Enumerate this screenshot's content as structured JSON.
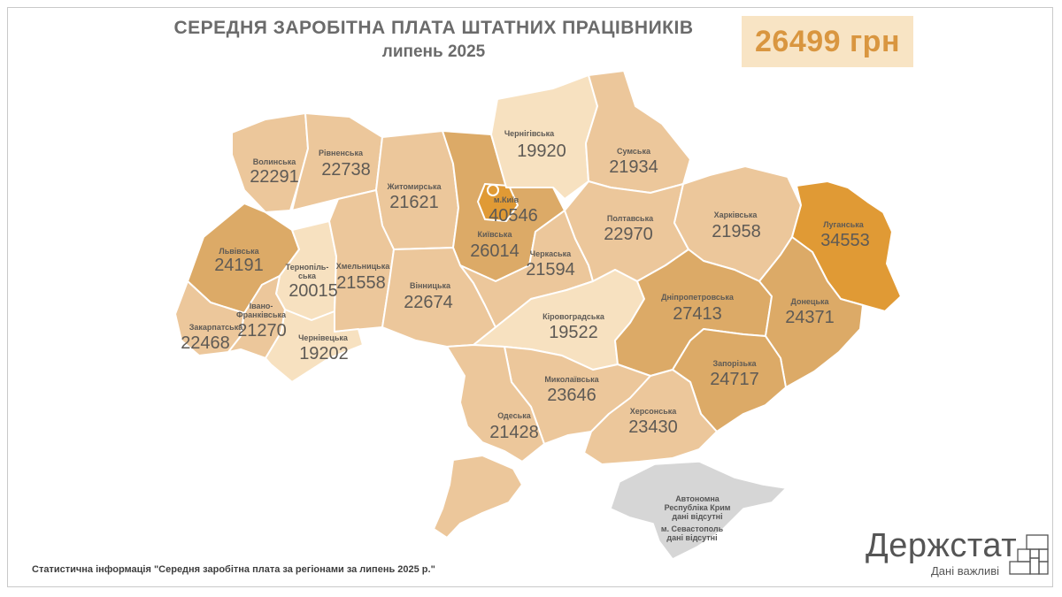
{
  "header": {
    "title": "СЕРЕДНЯ ЗАРОБІТНА ПЛАТА ШТАТНИХ ПРАЦІВНИКІВ",
    "subtitle": "липень 2025",
    "national_average": "26499 грн"
  },
  "colors": {
    "lightest": "#f7e1c0",
    "light": "#ecc79b",
    "medium": "#dcaa67",
    "dark": "#e09a35",
    "no_data": "#d6d6d6",
    "badge_bg": "#f8e4c4",
    "badge_text": "#d99640"
  },
  "regions": [
    {
      "name": "Волинська",
      "value": "22291",
      "shade": "light"
    },
    {
      "name": "Рівненська",
      "value": "22738",
      "shade": "light"
    },
    {
      "name": "Житомирська",
      "value": "21621",
      "shade": "light"
    },
    {
      "name": "м.Київ",
      "value": "40546",
      "shade": "dark"
    },
    {
      "name": "Київська",
      "value": "26014",
      "shade": "medium"
    },
    {
      "name": "Чернігівська",
      "value": "19920",
      "shade": "lightest"
    },
    {
      "name": "Сумська",
      "value": "21934",
      "shade": "light"
    },
    {
      "name": "Львівська",
      "value": "24191",
      "shade": "medium"
    },
    {
      "name": "Тернопіль-\nська",
      "value": "20015",
      "shade": "lightest"
    },
    {
      "name": "Хмельницька",
      "value": "21558",
      "shade": "light"
    },
    {
      "name": "Вінницька",
      "value": "22674",
      "shade": "light"
    },
    {
      "name": "Черкаська",
      "value": "21594",
      "shade": "light"
    },
    {
      "name": "Полтавська",
      "value": "22970",
      "shade": "light"
    },
    {
      "name": "Харківська",
      "value": "21958",
      "shade": "light"
    },
    {
      "name": "Луганська",
      "value": "34553",
      "shade": "dark"
    },
    {
      "name": "Закарпатська",
      "value": "22468",
      "shade": "light"
    },
    {
      "name": "Івано-\nФранківська",
      "value": "21270",
      "shade": "light"
    },
    {
      "name": "Чернівецька",
      "value": "19202",
      "shade": "lightest"
    },
    {
      "name": "Кіровоградська",
      "value": "19522",
      "shade": "lightest"
    },
    {
      "name": "Дніпропетровська",
      "value": "27413",
      "shade": "medium"
    },
    {
      "name": "Донецька",
      "value": "24371",
      "shade": "medium"
    },
    {
      "name": "Запорізька",
      "value": "24717",
      "shade": "medium"
    },
    {
      "name": "Миколаївська",
      "value": "23646",
      "shade": "light"
    },
    {
      "name": "Одеська",
      "value": "21428",
      "shade": "light"
    },
    {
      "name": "Херсонська",
      "value": "23430",
      "shade": "light"
    }
  ],
  "crimea": {
    "line1": "Автономна",
    "line2": "Республіка Крим",
    "line3": "дані відсутні",
    "line4": "м. Севастополь",
    "line5": "дані відсутні"
  },
  "footer": {
    "source": "Статистична інформація \"Середня заробітна плата за регіонами за липень 2025 р.\"",
    "logo": "Держстат",
    "tagline": "Дані важливі"
  }
}
